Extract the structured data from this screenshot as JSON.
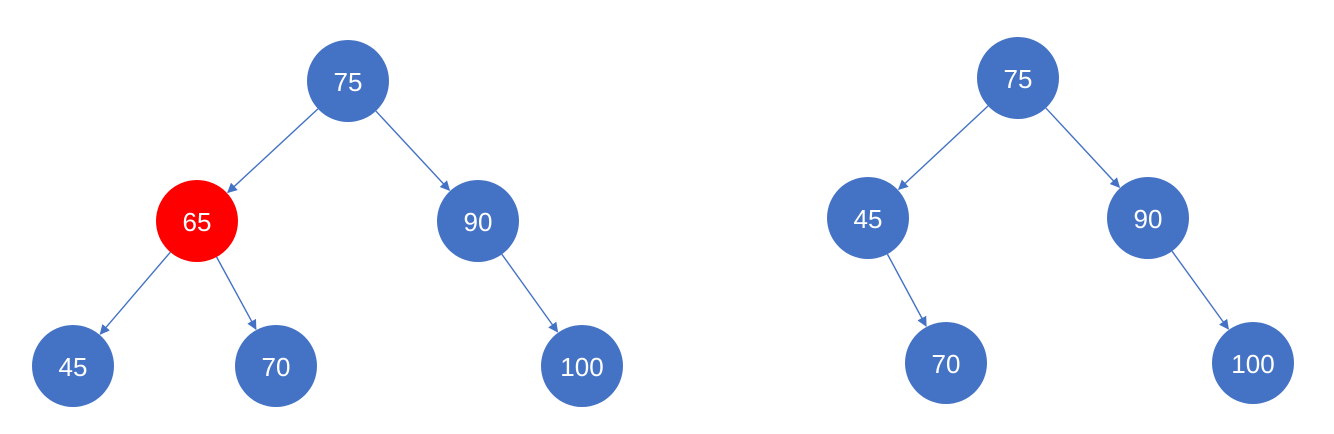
{
  "colors": {
    "node": "#4472C4",
    "highlight": "#FF0000",
    "edge": "#4472C4",
    "label": "#FFFFFF"
  },
  "trees": [
    {
      "name": "left-tree",
      "nodes": [
        {
          "id": "n75",
          "label": "75",
          "highlight": false
        },
        {
          "id": "n65",
          "label": "65",
          "highlight": true
        },
        {
          "id": "n90",
          "label": "90",
          "highlight": false
        },
        {
          "id": "n45",
          "label": "45",
          "highlight": false
        },
        {
          "id": "n70",
          "label": "70",
          "highlight": false
        },
        {
          "id": "n100",
          "label": "100",
          "highlight": false
        }
      ],
      "edges": [
        {
          "from": "n75",
          "to": "n65"
        },
        {
          "from": "n75",
          "to": "n90"
        },
        {
          "from": "n65",
          "to": "n45"
        },
        {
          "from": "n65",
          "to": "n70"
        },
        {
          "from": "n90",
          "to": "n100"
        }
      ]
    },
    {
      "name": "right-tree",
      "nodes": [
        {
          "id": "n75",
          "label": "75",
          "highlight": false
        },
        {
          "id": "n45",
          "label": "45",
          "highlight": false
        },
        {
          "id": "n90",
          "label": "90",
          "highlight": false
        },
        {
          "id": "n70",
          "label": "70",
          "highlight": false
        },
        {
          "id": "n100",
          "label": "100",
          "highlight": false
        }
      ],
      "edges": [
        {
          "from": "n75",
          "to": "n45"
        },
        {
          "from": "n75",
          "to": "n90"
        },
        {
          "from": "n45",
          "to": "n70"
        },
        {
          "from": "n90",
          "to": "n100"
        }
      ]
    }
  ]
}
